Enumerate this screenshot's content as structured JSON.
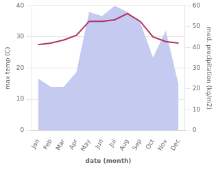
{
  "chart_data": {
    "type": "line",
    "xlabel": "date (month)",
    "ylabel": "max temp (C)",
    "y2label": "med. precipitation (kg/m2)",
    "categories": [
      "Jan",
      "Feb",
      "Mar",
      "Apr",
      "May",
      "Jun",
      "Jul",
      "Aug",
      "Sep",
      "Oct",
      "Nov",
      "Dec"
    ],
    "series": [
      {
        "type": "area",
        "axis": "y2",
        "color": "#c5caf0",
        "values": [
          25,
          21,
          21,
          28,
          57,
          55,
          60,
          57,
          52,
          35,
          48,
          22
        ]
      },
      {
        "type": "line",
        "color": "#b03060",
        "values": [
          27.5,
          28.0,
          29.0,
          30.5,
          35.0,
          35.0,
          35.5,
          37.5,
          35.0,
          30.0,
          28.5,
          28.0
        ]
      }
    ],
    "ylim": [
      0,
      40
    ],
    "yticks": [
      0,
      10,
      20,
      30,
      40
    ],
    "y2lim": [
      0,
      60
    ],
    "y2ticks": [
      0,
      10,
      20,
      30,
      40,
      50,
      60
    ],
    "grid": true
  }
}
